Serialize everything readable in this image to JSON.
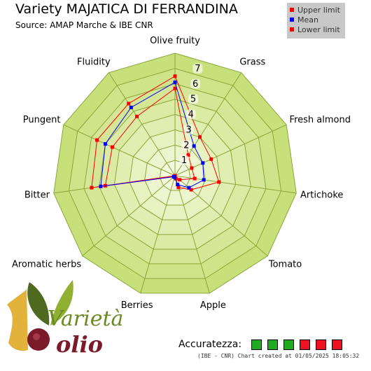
{
  "chart_data": {
    "type": "radar",
    "title": "Variety MAJATICA DI FERRANDINA",
    "subtitle": "Source: AMAP Marche & IBE CNR",
    "axes": [
      "Olive fruity",
      "Grass",
      "Fresh almond",
      "Artichoke",
      "Tomato",
      "Apple",
      "Berries",
      "Aromatic herbs",
      "Bitter",
      "Pungent",
      "Fluidity"
    ],
    "scale_labels": [
      "1",
      "2",
      "3",
      "4",
      "5",
      "6",
      "7"
    ],
    "rmax": 7,
    "series": [
      {
        "name": "Upper limit",
        "color": "#ff0000",
        "values": [
          6.5,
          3.0,
          2.6,
          2.9,
          1.4,
          0.8,
          0.1,
          0.1,
          5.5,
          5.6,
          5.6
        ]
      },
      {
        "name": "Mean",
        "color": "#0000ff",
        "values": [
          6.1,
          2.3,
          2.0,
          1.9,
          1.2,
          0.6,
          0.1,
          0.1,
          4.9,
          5.0,
          5.3
        ]
      },
      {
        "name": "Lower limit",
        "color": "#ff0000",
        "values": [
          5.7,
          1.6,
          1.2,
          1.3,
          0.4,
          0.2,
          0.0,
          0.0,
          4.6,
          4.5,
          4.6
        ]
      }
    ],
    "legend_position": "top-right"
  },
  "legend": [
    {
      "label": "Upper limit",
      "color": "#ff0000"
    },
    {
      "label": "Mean",
      "color": "#0000ff"
    },
    {
      "label": "Lower limit",
      "color": "#ff0000"
    }
  ],
  "footer": {
    "accuracy_label": "Accuratezza:",
    "accuracy_boxes": [
      "#22aa22",
      "#22aa22",
      "#22aa22",
      "#ee1122",
      "#ee1122",
      "#ee1122"
    ],
    "credit": "(IBE - CNR) Chart created at 01/05/2025 18:05:32"
  },
  "logo": {
    "word_top": "Varietà",
    "word_bottom": "olio"
  }
}
